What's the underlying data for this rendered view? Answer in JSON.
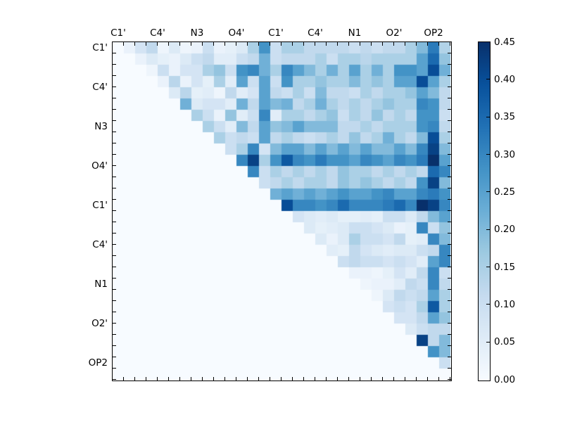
{
  "chart_data": {
    "type": "heatmap",
    "title": "",
    "xlabel": "",
    "ylabel": "",
    "matrix_size": 30,
    "x_tick_labels": [
      "C1'",
      "C4'",
      "N3",
      "O4'",
      "C1'",
      "C4'",
      "N1",
      "O2'",
      "OP2"
    ],
    "y_tick_labels": [
      "C1'",
      "C4'",
      "N3",
      "O4'",
      "C1'",
      "C4'",
      "N1",
      "O2'",
      "OP2"
    ],
    "tick_label_cell_positions": [
      0.5,
      4,
      7.5,
      11,
      14.5,
      18,
      21.5,
      25,
      28.5
    ],
    "minor_tick_step_cells": 1,
    "grid": false,
    "value_range": [
      0.0,
      0.45
    ],
    "colormap": {
      "name": "Blues",
      "anchors": [
        "#f7fbff",
        "#deebf7",
        "#c6dbef",
        "#9ecae1",
        "#6baed6",
        "#4292c6",
        "#2171b5",
        "#08519c",
        "#08306b"
      ]
    },
    "colorbar": {
      "position": "right",
      "min": 0.0,
      "max": 0.45,
      "tick_values": [
        0.0,
        0.05,
        0.1,
        0.15,
        0.2,
        0.25,
        0.3,
        0.35,
        0.4,
        0.45
      ],
      "tick_labels": [
        "0.00",
        "0.05",
        "0.10",
        "0.15",
        "0.20",
        "0.25",
        "0.30",
        "0.35",
        "0.40",
        "0.45"
      ]
    },
    "matrix": [
      [
        0,
        0.03,
        0.08,
        0.12,
        0.02,
        0.06,
        0.02,
        0.03,
        0.1,
        0.03,
        0.04,
        0.06,
        0.15,
        0.28,
        0.1,
        0.15,
        0.15,
        0.12,
        0.12,
        0.12,
        0.12,
        0.1,
        0.12,
        0.1,
        0.12,
        0.12,
        0.15,
        0.2,
        0.32,
        0.14
      ],
      [
        0,
        0,
        0.03,
        0.06,
        0.04,
        0.03,
        0.06,
        0.1,
        0.12,
        0.05,
        0.05,
        0.1,
        0.12,
        0.22,
        0.1,
        0.12,
        0.12,
        0.12,
        0.15,
        0.1,
        0.15,
        0.15,
        0.13,
        0.15,
        0.15,
        0.15,
        0.15,
        0.25,
        0.35,
        0.18
      ],
      [
        0,
        0,
        0,
        0.02,
        0.1,
        0.03,
        0.08,
        0.08,
        0.15,
        0.18,
        0.1,
        0.28,
        0.3,
        0.22,
        0.15,
        0.3,
        0.25,
        0.2,
        0.15,
        0.22,
        0.15,
        0.25,
        0.15,
        0.22,
        0.15,
        0.28,
        0.28,
        0.25,
        0.4,
        0.22
      ],
      [
        0,
        0,
        0,
        0,
        0.03,
        0.13,
        0.03,
        0.08,
        0.04,
        0.15,
        0.05,
        0.25,
        0.1,
        0.25,
        0.1,
        0.28,
        0.15,
        0.15,
        0.18,
        0.15,
        0.15,
        0.2,
        0.15,
        0.18,
        0.15,
        0.25,
        0.25,
        0.4,
        0.25,
        0.15
      ],
      [
        0,
        0,
        0,
        0,
        0,
        0.06,
        0.13,
        0.04,
        0.05,
        0.02,
        0.12,
        0.05,
        0.08,
        0.25,
        0.12,
        0.1,
        0.15,
        0.1,
        0.2,
        0.12,
        0.12,
        0.1,
        0.15,
        0.12,
        0.15,
        0.15,
        0.18,
        0.25,
        0.2,
        0.12
      ],
      [
        0,
        0,
        0,
        0,
        0,
        0,
        0.22,
        0.06,
        0.08,
        0.08,
        0.05,
        0.22,
        0.12,
        0.25,
        0.2,
        0.22,
        0.12,
        0.15,
        0.22,
        0.15,
        0.12,
        0.15,
        0.12,
        0.15,
        0.18,
        0.15,
        0.15,
        0.3,
        0.28,
        0.12
      ],
      [
        0,
        0,
        0,
        0,
        0,
        0,
        0,
        0.15,
        0.1,
        0.03,
        0.18,
        0.05,
        0.1,
        0.3,
        0.05,
        0.15,
        0.15,
        0.12,
        0.15,
        0.18,
        0.1,
        0.15,
        0.12,
        0.18,
        0.12,
        0.15,
        0.12,
        0.28,
        0.28,
        0.1
      ],
      [
        0,
        0,
        0,
        0,
        0,
        0,
        0,
        0,
        0.15,
        0.1,
        0.05,
        0.2,
        0.12,
        0.25,
        0.18,
        0.2,
        0.25,
        0.2,
        0.2,
        0.2,
        0.12,
        0.12,
        0.15,
        0.12,
        0.15,
        0.15,
        0.15,
        0.28,
        0.3,
        0.12
      ],
      [
        0,
        0,
        0,
        0,
        0,
        0,
        0,
        0,
        0,
        0.15,
        0.1,
        0.12,
        0.1,
        0.25,
        0.12,
        0.15,
        0.12,
        0.1,
        0.12,
        0.15,
        0.12,
        0.18,
        0.12,
        0.15,
        0.22,
        0.15,
        0.12,
        0.2,
        0.4,
        0.15
      ],
      [
        0,
        0,
        0,
        0,
        0,
        0,
        0,
        0,
        0,
        0,
        0.1,
        0.15,
        0.3,
        0.08,
        0.2,
        0.25,
        0.25,
        0.2,
        0.25,
        0.2,
        0.25,
        0.2,
        0.25,
        0.2,
        0.2,
        0.25,
        0.2,
        0.3,
        0.42,
        0.2
      ],
      [
        0,
        0,
        0,
        0,
        0,
        0,
        0,
        0,
        0,
        0,
        0,
        0.3,
        0.42,
        0.15,
        0.28,
        0.38,
        0.3,
        0.28,
        0.32,
        0.28,
        0.28,
        0.25,
        0.3,
        0.28,
        0.25,
        0.3,
        0.28,
        0.32,
        0.45,
        0.25
      ],
      [
        0,
        0,
        0,
        0,
        0,
        0,
        0,
        0,
        0,
        0,
        0,
        0,
        0.3,
        0.1,
        0.15,
        0.12,
        0.15,
        0.12,
        0.15,
        0.12,
        0.18,
        0.15,
        0.15,
        0.12,
        0.15,
        0.12,
        0.15,
        0.12,
        0.35,
        0.3
      ],
      [
        0,
        0,
        0,
        0,
        0,
        0,
        0,
        0,
        0,
        0,
        0,
        0,
        0,
        0.1,
        0.12,
        0.15,
        0.12,
        0.15,
        0.15,
        0.12,
        0.18,
        0.15,
        0.18,
        0.15,
        0.12,
        0.15,
        0.12,
        0.28,
        0.42,
        0.2
      ],
      [
        0,
        0,
        0,
        0,
        0,
        0,
        0,
        0,
        0,
        0,
        0,
        0,
        0,
        0,
        0.22,
        0.25,
        0.22,
        0.25,
        0.22,
        0.25,
        0.28,
        0.25,
        0.25,
        0.28,
        0.3,
        0.25,
        0.25,
        0.3,
        0.32,
        0.28
      ],
      [
        0,
        0,
        0,
        0,
        0,
        0,
        0,
        0,
        0,
        0,
        0,
        0,
        0,
        0,
        0,
        0.4,
        0.3,
        0.3,
        0.28,
        0.3,
        0.35,
        0.3,
        0.3,
        0.3,
        0.32,
        0.35,
        0.3,
        0.45,
        0.42,
        0.3
      ],
      [
        0,
        0,
        0,
        0,
        0,
        0,
        0,
        0,
        0,
        0,
        0,
        0,
        0,
        0,
        0,
        0,
        0.08,
        0.06,
        0.05,
        0.06,
        0.04,
        0.04,
        0.05,
        0.04,
        0.1,
        0.1,
        0.06,
        0.12,
        0.2,
        0.25
      ],
      [
        0,
        0,
        0,
        0,
        0,
        0,
        0,
        0,
        0,
        0,
        0,
        0,
        0,
        0,
        0,
        0,
        0,
        0.06,
        0.04,
        0.05,
        0.06,
        0.1,
        0.1,
        0.08,
        0.06,
        0.03,
        0.04,
        0.3,
        0.1,
        0.18
      ],
      [
        0,
        0,
        0,
        0,
        0,
        0,
        0,
        0,
        0,
        0,
        0,
        0,
        0,
        0,
        0,
        0,
        0,
        0,
        0.06,
        0.03,
        0.06,
        0.15,
        0.1,
        0.1,
        0.08,
        0.12,
        0.04,
        0.05,
        0.3,
        0.2
      ],
      [
        0,
        0,
        0,
        0,
        0,
        0,
        0,
        0,
        0,
        0,
        0,
        0,
        0,
        0,
        0,
        0,
        0,
        0,
        0,
        0.05,
        0.04,
        0.12,
        0.08,
        0.06,
        0.05,
        0.06,
        0.06,
        0.1,
        0.12,
        0.3
      ],
      [
        0,
        0,
        0,
        0,
        0,
        0,
        0,
        0,
        0,
        0,
        0,
        0,
        0,
        0,
        0,
        0,
        0,
        0,
        0,
        0,
        0.1,
        0.12,
        0.1,
        0.1,
        0.08,
        0.1,
        0.08,
        0.05,
        0.25,
        0.3
      ],
      [
        0,
        0,
        0,
        0,
        0,
        0,
        0,
        0,
        0,
        0,
        0,
        0,
        0,
        0,
        0,
        0,
        0,
        0,
        0,
        0,
        0,
        0.03,
        0.03,
        0.02,
        0.04,
        0.08,
        0.05,
        0.12,
        0.3,
        0.1
      ],
      [
        0,
        0,
        0,
        0,
        0,
        0,
        0,
        0,
        0,
        0,
        0,
        0,
        0,
        0,
        0,
        0,
        0,
        0,
        0,
        0,
        0,
        0,
        0.02,
        0.03,
        0.03,
        0.05,
        0.12,
        0.1,
        0.3,
        0.12
      ],
      [
        0,
        0,
        0,
        0,
        0,
        0,
        0,
        0,
        0,
        0,
        0,
        0,
        0,
        0,
        0,
        0,
        0,
        0,
        0,
        0,
        0,
        0,
        0,
        0.02,
        0.06,
        0.12,
        0.1,
        0.12,
        0.25,
        0.15
      ],
      [
        0,
        0,
        0,
        0,
        0,
        0,
        0,
        0,
        0,
        0,
        0,
        0,
        0,
        0,
        0,
        0,
        0,
        0,
        0,
        0,
        0,
        0,
        0,
        0,
        0.08,
        0.1,
        0.08,
        0.15,
        0.38,
        0.15
      ],
      [
        0,
        0,
        0,
        0,
        0,
        0,
        0,
        0,
        0,
        0,
        0,
        0,
        0,
        0,
        0,
        0,
        0,
        0,
        0,
        0,
        0,
        0,
        0,
        0,
        0,
        0.08,
        0.08,
        0.12,
        0.25,
        0.18
      ],
      [
        0,
        0,
        0,
        0,
        0,
        0,
        0,
        0,
        0,
        0,
        0,
        0,
        0,
        0,
        0,
        0,
        0,
        0,
        0,
        0,
        0,
        0,
        0,
        0,
        0,
        0,
        0.06,
        0.1,
        0.12,
        0.12
      ],
      [
        0,
        0,
        0,
        0,
        0,
        0,
        0,
        0,
        0,
        0,
        0,
        0,
        0,
        0,
        0,
        0,
        0,
        0,
        0,
        0,
        0,
        0,
        0,
        0,
        0,
        0,
        0,
        0.42,
        0.12,
        0.2
      ],
      [
        0,
        0,
        0,
        0,
        0,
        0,
        0,
        0,
        0,
        0,
        0,
        0,
        0,
        0,
        0,
        0,
        0,
        0,
        0,
        0,
        0,
        0,
        0,
        0,
        0,
        0,
        0,
        0,
        0.28,
        0.2
      ],
      [
        0,
        0,
        0,
        0,
        0,
        0,
        0,
        0,
        0,
        0,
        0,
        0,
        0,
        0,
        0,
        0,
        0,
        0,
        0,
        0,
        0,
        0,
        0,
        0,
        0,
        0,
        0,
        0,
        0,
        0.1
      ],
      [
        0,
        0,
        0,
        0,
        0,
        0,
        0,
        0,
        0,
        0,
        0,
        0,
        0,
        0,
        0,
        0,
        0,
        0,
        0,
        0,
        0,
        0,
        0,
        0,
        0,
        0,
        0,
        0,
        0,
        0
      ]
    ]
  }
}
